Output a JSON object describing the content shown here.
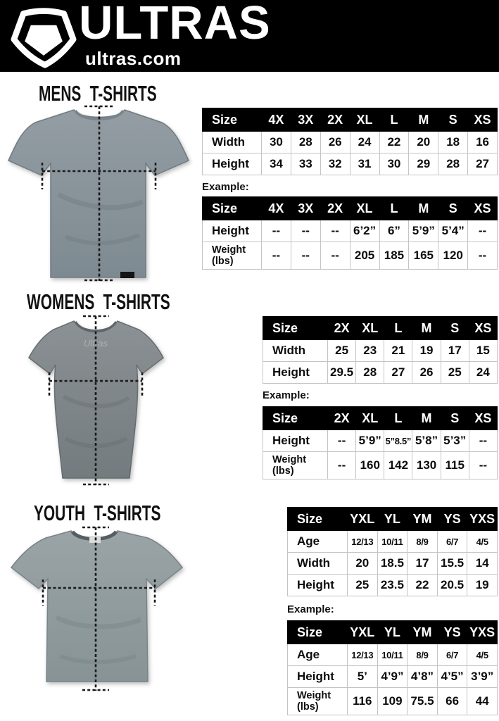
{
  "header": {
    "brand": "ULTRAS",
    "site": "ultras.com",
    "logo_icon": "pentagon-shield-icon",
    "bg_color": "#000000",
    "fg_color": "#ffffff"
  },
  "colors": {
    "table_header_bg": "#000000",
    "table_header_fg": "#ffffff",
    "table_border": "#c4c4c4",
    "mens_shirt": "#8a949b",
    "womens_shirt": "#82898c",
    "youth_shirt": "#95a0a2",
    "measurement_line": "#1a1a1a"
  },
  "mens": {
    "heading": "MENS T-SHIRTS",
    "shirt_image": "mens-gray-tshirt-photo",
    "example_label": "Example:",
    "size_table": {
      "columns": [
        "Size",
        "4X",
        "3X",
        "2X",
        "XL",
        "L",
        "M",
        "S",
        "XS"
      ],
      "rows": [
        {
          "label": "Width",
          "values": [
            "30",
            "28",
            "26",
            "24",
            "22",
            "20",
            "18",
            "16"
          ]
        },
        {
          "label": "Height",
          "values": [
            "34",
            "33",
            "32",
            "31",
            "30",
            "29",
            "28",
            "27"
          ]
        }
      ]
    },
    "example_table": {
      "columns": [
        "Size",
        "4X",
        "3X",
        "2X",
        "XL",
        "L",
        "M",
        "S",
        "XS"
      ],
      "rows": [
        {
          "label": "Height",
          "values": [
            "--",
            "--",
            "--",
            "6’2”",
            "6”",
            "5’9”",
            "5’4”",
            "--"
          ]
        },
        {
          "label": "Weight (lbs)",
          "values": [
            "--",
            "--",
            "--",
            "205",
            "185",
            "165",
            "120",
            "--"
          ]
        }
      ]
    }
  },
  "womens": {
    "heading": "WOMENS T-SHIRTS",
    "shirt_image": "womens-gray-tshirt-photo",
    "shirt_watermark": "Ultras",
    "example_label": "Example:",
    "size_table": {
      "columns": [
        "Size",
        "2X",
        "XL",
        "L",
        "M",
        "S",
        "XS"
      ],
      "rows": [
        {
          "label": "Width",
          "values": [
            "25",
            "23",
            "21",
            "19",
            "17",
            "15"
          ]
        },
        {
          "label": "Height",
          "values": [
            "29.5",
            "28",
            "27",
            "26",
            "25",
            "24"
          ]
        }
      ]
    },
    "example_table": {
      "columns": [
        "Size",
        "2X",
        "XL",
        "L",
        "M",
        "S",
        "XS"
      ],
      "rows": [
        {
          "label": "Height",
          "values": [
            "--",
            "5’9”",
            "5”8.5”",
            "5’8”",
            "5’3”",
            "--"
          ]
        },
        {
          "label": "Weight (lbs)",
          "values": [
            "--",
            "160",
            "142",
            "130",
            "115",
            "--"
          ]
        }
      ]
    }
  },
  "youth": {
    "heading": "YOUTH T-SHIRTS",
    "shirt_image": "youth-gray-tshirt-photo",
    "example_label": "Example:",
    "size_table": {
      "columns": [
        "Size",
        "YXL",
        "YL",
        "YM",
        "YS",
        "YXS"
      ],
      "rows": [
        {
          "label": "Age",
          "values": [
            "12/13",
            "10/11",
            "8/9",
            "6/7",
            "4/5"
          ]
        },
        {
          "label": "Width",
          "values": [
            "20",
            "18.5",
            "17",
            "15.5",
            "14"
          ]
        },
        {
          "label": "Height",
          "values": [
            "25",
            "23.5",
            "22",
            "20.5",
            "19"
          ]
        }
      ]
    },
    "example_table": {
      "columns": [
        "Size",
        "YXL",
        "YL",
        "YM",
        "YS",
        "YXS"
      ],
      "rows": [
        {
          "label": "Age",
          "values": [
            "12/13",
            "10/11",
            "8/9",
            "6/7",
            "4/5"
          ]
        },
        {
          "label": "Height",
          "values": [
            "5’",
            "4’9”",
            "4’8”",
            "4’5”",
            "3’9”"
          ]
        },
        {
          "label": "Weight (lbs)",
          "values": [
            "116",
            "109",
            "75.5",
            "66",
            "44"
          ]
        }
      ]
    }
  }
}
